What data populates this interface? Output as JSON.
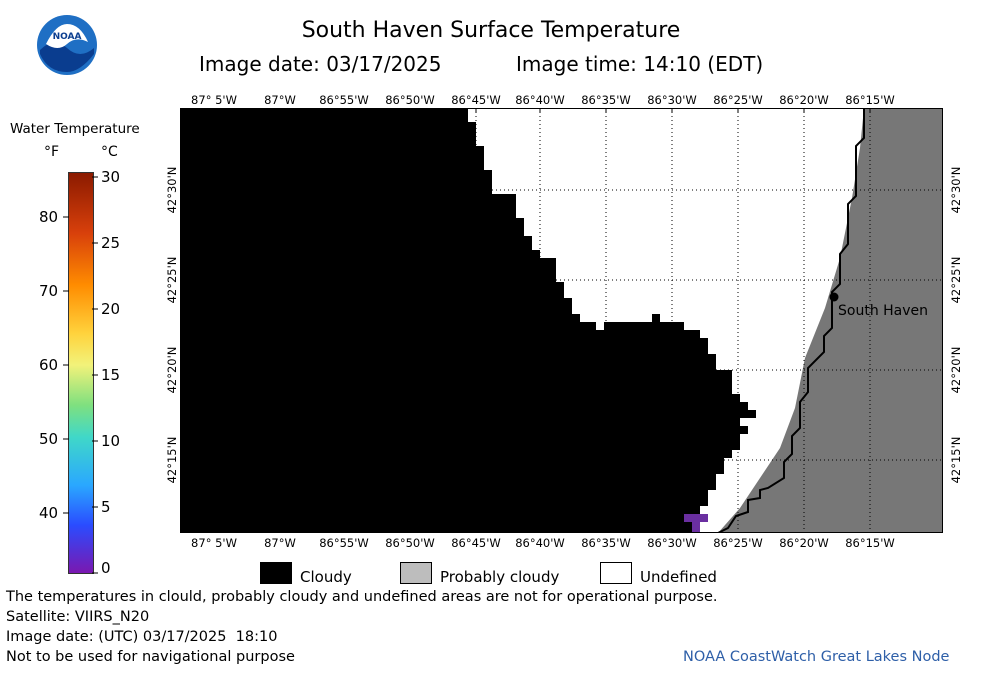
{
  "header": {
    "title": "South Haven Surface Temperature",
    "image_date_label": "Image date: 03/17/2025",
    "image_time_label": "Image time: 14:10 (EDT)"
  },
  "logo": {
    "text": "NOAA"
  },
  "colorbar": {
    "title": "Water Temperature",
    "unit_f": "°F",
    "unit_c": "°C",
    "f_ticks": [
      "80",
      "70",
      "60",
      "50",
      "40"
    ],
    "c_ticks": [
      "30",
      "25",
      "20",
      "15",
      "10",
      "5",
      "0"
    ]
  },
  "map": {
    "lon_labels": [
      "87° 5'W",
      "87°W",
      "86°55'W",
      "86°50'W",
      "86°45'W",
      "86°40'W",
      "86°35'W",
      "86°30'W",
      "86°25'W",
      "86°20'W",
      "86°15'W"
    ],
    "lat_labels": [
      "42°30'N",
      "42°25'N",
      "42°20'N",
      "42°15'N"
    ],
    "city": "South Haven",
    "colors": {
      "cloud": "#000000",
      "land": "#777777",
      "water_undefined": "#ffffff",
      "cold_water": "#6a2fa0"
    }
  },
  "legend": {
    "items": [
      {
        "label": "Cloudy",
        "color": "#000000"
      },
      {
        "label": "Probably cloudy",
        "color": "#bdbdbd"
      },
      {
        "label": "Undefined",
        "color": "#ffffff"
      }
    ]
  },
  "footer": {
    "note": "The temperatures in clould, probably cloudy and undefined areas are not for operational purpose.",
    "satellite": "Satellite: VIIRS_N20",
    "utc_date": "Image date: (UTC) 03/17/2025  18:10",
    "nav_note": "Not to be used for navigational purpose",
    "credit": "NOAA CoastWatch Great Lakes Node"
  }
}
